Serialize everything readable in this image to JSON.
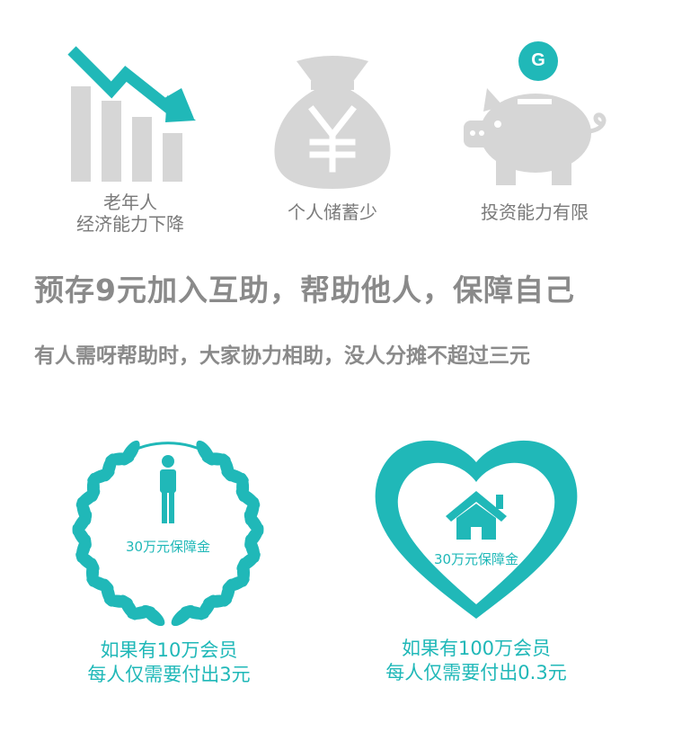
{
  "colors": {
    "accent": "#20b8b8",
    "icon_grey": "#d6d6d6",
    "text_grey": "#8a8a8a"
  },
  "icons": [
    {
      "name": "declining-chart-icon",
      "label": "老年人\n经济能力下降"
    },
    {
      "name": "money-bag-icon",
      "label": "个人储蓄少"
    },
    {
      "name": "piggy-bank-icon",
      "label": "投资能力有限",
      "badge": "G"
    }
  ],
  "headline": "预存9元加入互助，帮助他人，保障自己",
  "subline": "有人需呀帮助时，大家协力相助，没人分摊不超过三元",
  "cards": [
    {
      "icon": "laurel-person-icon",
      "inner_label": "30万元保障金",
      "caption": "如果有10万会员\n每人仅需要付出3元"
    },
    {
      "icon": "heart-house-icon",
      "inner_label": "30万元保障金",
      "caption": "如果有100万会员\n每人仅需要付出0.3元"
    }
  ]
}
